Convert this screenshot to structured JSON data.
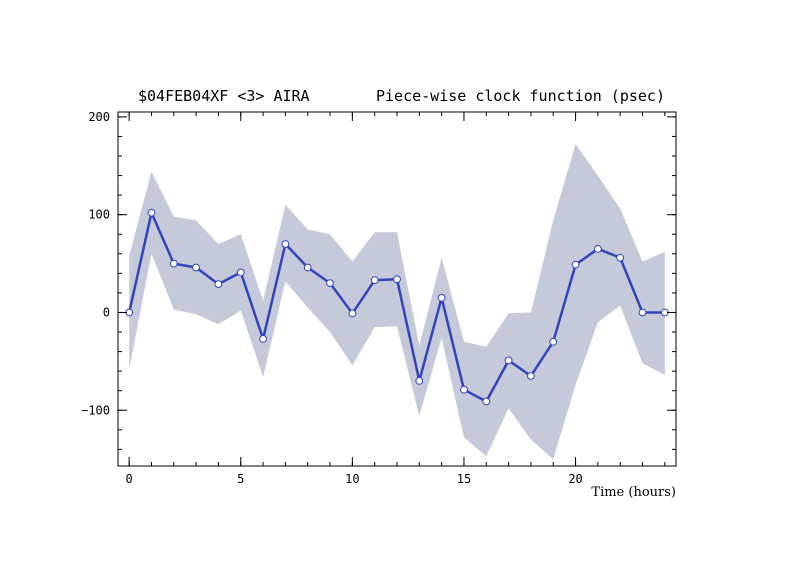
{
  "chart_data": {
    "type": "line",
    "title_left": "$04FEB04XF <3>  AIRA",
    "title_right": "Piece-wise clock function (psec)",
    "xlabel": "Time (hours)",
    "ylabel": "",
    "xlim": [
      -0.5,
      24.5
    ],
    "ylim": [
      -157,
      205
    ],
    "x_ticks": [
      0,
      5,
      10,
      15,
      20
    ],
    "y_ticks": [
      -100,
      0,
      100,
      200
    ],
    "x_tick_labels": [
      "0",
      "5",
      "10",
      "15",
      "20"
    ],
    "y_tick_labels": [
      "−100",
      "0",
      "100",
      "200"
    ],
    "x_minor_step": 1,
    "y_minor_step": 20,
    "grid": false,
    "series": [
      {
        "x": [
          0,
          1,
          2,
          3,
          4,
          5,
          6,
          7,
          8,
          9,
          10,
          11,
          12,
          13,
          14,
          15,
          16,
          17,
          18,
          19,
          20,
          21,
          22,
          23,
          24
        ],
        "values": [
          0,
          102,
          50,
          46,
          29,
          41,
          -27,
          70,
          46,
          30,
          -1,
          33,
          34,
          -70,
          15,
          -79,
          -91,
          -49,
          -65,
          -30,
          49,
          65,
          56,
          0,
          0
        ],
        "upper": [
          58,
          144,
          98,
          94,
          70,
          80,
          12,
          110,
          85,
          80,
          52,
          82,
          82,
          -34,
          56,
          -30,
          -35,
          -1,
          0,
          94,
          172,
          140,
          106,
          52,
          62
        ],
        "lower": [
          -58,
          60,
          3,
          -2,
          -12,
          2,
          -66,
          32,
          5,
          -20,
          -54,
          -15,
          -14,
          -106,
          -26,
          -128,
          -147,
          -98,
          -130,
          -150,
          -74,
          -10,
          7,
          -52,
          -64
        ],
        "line_color": "#3344bb",
        "band_color": "#c5c9d9",
        "marker_fill": "#ffffff"
      }
    ]
  }
}
